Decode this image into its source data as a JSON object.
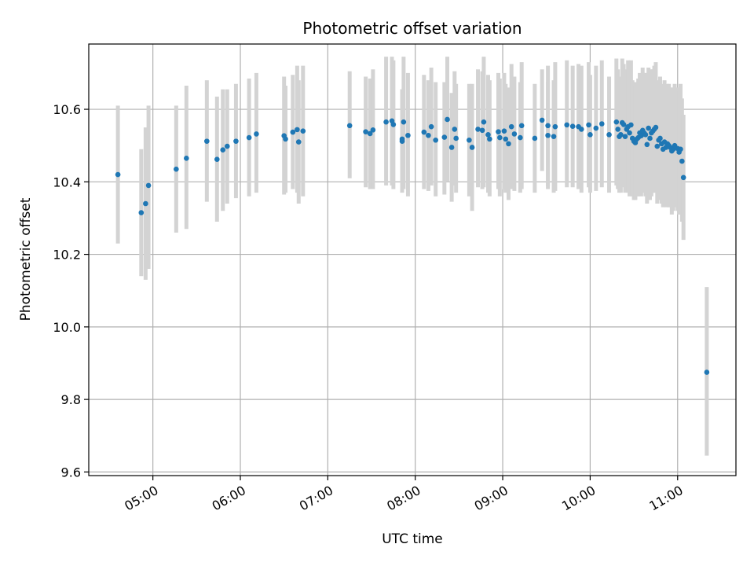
{
  "chart_data": {
    "type": "scatter",
    "title": "Photometric offset variation",
    "xlabel": "UTC time",
    "ylabel": "Photometric offset",
    "xlim": [
      "04:16",
      "11:40"
    ],
    "ylim": [
      9.59,
      10.78
    ],
    "x_ticks": [
      "05:00",
      "06:00",
      "07:00",
      "08:00",
      "09:00",
      "10:00",
      "11:00"
    ],
    "y_ticks": [
      9.6,
      9.8,
      10.0,
      10.2,
      10.4,
      10.6
    ],
    "grid": true,
    "colors": {
      "point": "#1f77b4",
      "errorbar": "#d3d3d3",
      "grid": "#b0b0b0"
    },
    "series": [
      {
        "x": [
          "04:36",
          "04:52",
          "04:55",
          "04:57",
          "05:16",
          "05:23",
          "05:37",
          "05:44",
          "05:48",
          "05:51",
          "05:57",
          "06:06",
          "06:11",
          "06:30",
          "06:31",
          "06:36",
          "06:39",
          "06:40",
          "06:43",
          "07:15",
          "07:26",
          "07:29",
          "07:31",
          "07:40",
          "07:44",
          "07:45",
          "07:51",
          "07:51",
          "07:52",
          "07:55",
          "08:06",
          "08:09",
          "08:11",
          "08:14",
          "08:20",
          "08:22",
          "08:25",
          "08:27",
          "08:28",
          "08:37",
          "08:39",
          "08:43",
          "08:46",
          "08:47",
          "08:50",
          "08:51",
          "08:57",
          "08:58",
          "09:01",
          "09:02",
          "09:04",
          "09:06",
          "09:08",
          "09:12",
          "09:13",
          "09:22",
          "09:27",
          "09:31",
          "09:31",
          "09:35",
          "09:36",
          "09:44",
          "09:48",
          "09:52",
          "09:54",
          "09:59",
          "10:00",
          "10:04",
          "10:08",
          "10:13",
          "10:18",
          "10:19",
          "10:20",
          "10:21",
          "10:22",
          "10:23",
          "10:24",
          "10:25",
          "10:26",
          "10:27",
          "10:28",
          "10:29",
          "10:30",
          "10:31",
          "10:32",
          "10:33",
          "10:34",
          "10:35",
          "10:36",
          "10:37",
          "10:38",
          "10:39",
          "10:40",
          "10:41",
          "10:42",
          "10:43",
          "10:44",
          "10:45",
          "10:46",
          "10:47",
          "10:48",
          "10:49",
          "10:50",
          "10:51",
          "10:52",
          "10:53",
          "10:54",
          "10:55",
          "10:56",
          "10:57",
          "10:58",
          "11:00",
          "11:01",
          "11:02",
          "11:03",
          "11:04",
          "11:20"
        ],
        "y": [
          10.42,
          10.315,
          10.34,
          10.39,
          10.435,
          10.465,
          10.512,
          10.462,
          10.488,
          10.498,
          10.512,
          10.522,
          10.532,
          10.527,
          10.518,
          10.537,
          10.544,
          10.51,
          10.54,
          10.555,
          10.538,
          10.533,
          10.543,
          10.565,
          10.568,
          10.558,
          10.512,
          10.518,
          10.565,
          10.528,
          10.537,
          10.528,
          10.552,
          10.515,
          10.523,
          10.572,
          10.495,
          10.545,
          10.52,
          10.515,
          10.495,
          10.545,
          10.542,
          10.565,
          10.53,
          10.518,
          10.538,
          10.522,
          10.54,
          10.518,
          10.505,
          10.552,
          10.532,
          10.522,
          10.555,
          10.52,
          10.57,
          10.528,
          10.555,
          10.525,
          10.552,
          10.557,
          10.553,
          10.552,
          10.545,
          10.557,
          10.53,
          10.548,
          10.56,
          10.53,
          10.565,
          10.545,
          10.525,
          10.53,
          10.563,
          10.558,
          10.525,
          10.545,
          10.552,
          10.535,
          10.557,
          10.52,
          10.512,
          10.508,
          10.518,
          10.522,
          10.535,
          10.527,
          10.542,
          10.535,
          10.53,
          10.503,
          10.548,
          10.52,
          10.535,
          10.54,
          10.545,
          10.55,
          10.498,
          10.515,
          10.52,
          10.505,
          10.49,
          10.51,
          10.495,
          10.505,
          10.5,
          10.495,
          10.485,
          10.49,
          10.5,
          10.492,
          10.482,
          10.49,
          10.457,
          10.412,
          9.875
        ],
        "err_low": [
          10.23,
          10.14,
          10.13,
          10.16,
          10.26,
          10.27,
          10.345,
          10.29,
          10.32,
          10.34,
          10.355,
          10.36,
          10.37,
          10.365,
          10.37,
          10.38,
          10.37,
          10.34,
          10.36,
          10.41,
          10.385,
          10.38,
          10.38,
          10.39,
          10.39,
          10.38,
          10.37,
          10.38,
          10.38,
          10.36,
          10.38,
          10.375,
          10.39,
          10.36,
          10.365,
          10.4,
          10.345,
          10.39,
          10.37,
          10.36,
          10.32,
          10.385,
          10.38,
          10.385,
          10.37,
          10.36,
          10.38,
          10.36,
          10.38,
          10.37,
          10.35,
          10.38,
          10.375,
          10.37,
          10.38,
          10.37,
          10.43,
          10.38,
          10.39,
          10.37,
          10.375,
          10.385,
          10.385,
          10.38,
          10.37,
          10.385,
          10.37,
          10.375,
          10.385,
          10.37,
          10.39,
          10.38,
          10.37,
          10.37,
          10.385,
          10.39,
          10.37,
          10.38,
          10.37,
          10.36,
          10.38,
          10.36,
          10.35,
          10.35,
          10.36,
          10.36,
          10.37,
          10.36,
          10.37,
          10.37,
          10.36,
          10.34,
          10.38,
          10.35,
          10.36,
          10.37,
          10.37,
          10.37,
          10.34,
          10.35,
          10.35,
          10.34,
          10.33,
          10.34,
          10.33,
          10.34,
          10.33,
          10.33,
          10.31,
          10.32,
          10.33,
          10.32,
          10.31,
          10.31,
          10.29,
          10.24,
          9.645
        ],
        "err_high": [
          10.61,
          10.49,
          10.55,
          10.61,
          10.61,
          10.665,
          10.68,
          10.635,
          10.655,
          10.655,
          10.67,
          10.685,
          10.7,
          10.69,
          10.665,
          10.695,
          10.72,
          10.68,
          10.72,
          10.705,
          10.69,
          10.685,
          10.71,
          10.745,
          10.745,
          10.735,
          10.655,
          10.655,
          10.745,
          10.7,
          10.695,
          10.68,
          10.715,
          10.675,
          10.675,
          10.745,
          10.645,
          10.705,
          10.67,
          10.67,
          10.67,
          10.71,
          10.705,
          10.745,
          10.695,
          10.68,
          10.7,
          10.685,
          10.7,
          10.67,
          10.66,
          10.725,
          10.69,
          10.675,
          10.73,
          10.67,
          10.71,
          10.675,
          10.72,
          10.68,
          10.73,
          10.735,
          10.72,
          10.725,
          10.72,
          10.73,
          10.695,
          10.72,
          10.735,
          10.69,
          10.74,
          10.71,
          10.68,
          10.69,
          10.74,
          10.725,
          10.68,
          10.71,
          10.735,
          10.71,
          10.735,
          10.68,
          10.675,
          10.665,
          10.675,
          10.685,
          10.7,
          10.69,
          10.715,
          10.7,
          10.7,
          10.665,
          10.715,
          10.69,
          10.71,
          10.71,
          10.72,
          10.73,
          10.66,
          10.68,
          10.69,
          10.67,
          10.65,
          10.68,
          10.66,
          10.67,
          10.67,
          10.66,
          10.66,
          10.66,
          10.67,
          10.66,
          10.65,
          10.67,
          10.63,
          10.585,
          10.11
        ]
      }
    ]
  }
}
